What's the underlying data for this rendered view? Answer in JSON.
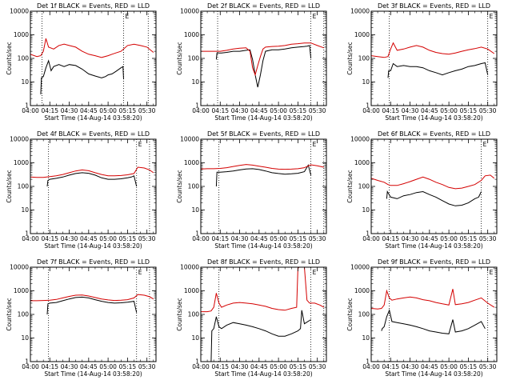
{
  "figure": {
    "x_tick_labels": [
      "04:00",
      "04:15",
      "04:30",
      "04:45",
      "05:00",
      "05:15",
      "05:30"
    ],
    "y_tick_labels": [
      "1",
      "10",
      "100",
      "1000",
      "10000"
    ],
    "y_axis_label": "Counts/sec",
    "x_axis_label": "Start Time (14-Aug-14 03:58:20)",
    "colors": {
      "events": "#000000",
      "lld": "#e00000",
      "axes": "#000000"
    },
    "marker_label": "E"
  },
  "chart_data": [
    {
      "type": "line",
      "title": "Det 1f BLACK = Events, RED = LLD",
      "xlabel": "Start Time (14-Aug-14 03:58:20)",
      "ylabel": "Counts/sec",
      "x_unit": "minutes after 04:00",
      "xlim": [
        0,
        97
      ],
      "ylim": [
        1,
        10000
      ],
      "y_scale": "log",
      "vlines": [
        9,
        72,
        91
      ],
      "series": [
        {
          "name": "BLACK = Events",
          "color": "#000000",
          "x": [
            8,
            8.5,
            10,
            12,
            14,
            16,
            18,
            22,
            26,
            30,
            35,
            40,
            45,
            50,
            55,
            58,
            60,
            63,
            66,
            70,
            71.5,
            72
          ],
          "y": [
            3,
            15,
            17,
            40,
            80,
            30,
            45,
            55,
            45,
            55,
            50,
            35,
            22,
            18,
            15,
            17,
            20,
            22,
            28,
            40,
            45,
            13
          ]
        },
        {
          "name": "RED = LLD",
          "color": "#d40000",
          "x": [
            0,
            5,
            8,
            10,
            12,
            14,
            18,
            22,
            26,
            30,
            35,
            40,
            45,
            50,
            55,
            60,
            63,
            66,
            70,
            75,
            80,
            85,
            90,
            95
          ],
          "y": [
            150,
            120,
            130,
            200,
            700,
            300,
            250,
            350,
            400,
            350,
            300,
            200,
            150,
            130,
            110,
            130,
            150,
            170,
            200,
            350,
            400,
            350,
            300,
            180
          ]
        }
      ]
    },
    {
      "type": "line",
      "title": "Det 2f BLACK = Events, RED = LLD",
      "xlabel": "Start Time (14-Aug-14 03:58:20)",
      "ylabel": "Counts/sec",
      "x_unit": "minutes after 04:00",
      "xlim": [
        0,
        97
      ],
      "ylim": [
        1,
        10000
      ],
      "y_scale": "log",
      "vlines": [
        13,
        85,
        95
      ],
      "series": [
        {
          "name": "BLACK = Events",
          "color": "#000000",
          "x": [
            12,
            12.5,
            16,
            20,
            25,
            30,
            35,
            38,
            40,
            42,
            44,
            46,
            48,
            50,
            55,
            60,
            65,
            70,
            75,
            80,
            82,
            84,
            85
          ],
          "y": [
            90,
            170,
            170,
            180,
            200,
            200,
            220,
            230,
            90,
            20,
            6,
            20,
            80,
            200,
            230,
            230,
            250,
            280,
            300,
            320,
            330,
            350,
            100
          ]
        },
        {
          "name": "RED = LLD",
          "color": "#d40000",
          "x": [
            0,
            5,
            10,
            15,
            20,
            25,
            30,
            35,
            38,
            40,
            42,
            44,
            46,
            48,
            50,
            55,
            60,
            65,
            70,
            75,
            80,
            85,
            90,
            95
          ],
          "y": [
            200,
            200,
            200,
            200,
            220,
            250,
            270,
            280,
            200,
            40,
            20,
            50,
            120,
            250,
            300,
            320,
            330,
            350,
            400,
            420,
            450,
            450,
            350,
            280
          ]
        }
      ]
    },
    {
      "type": "line",
      "title": "Det 3f BLACK = Events, RED = LLD",
      "xlabel": "Start Time (14-Aug-14 03:58:20)",
      "ylabel": "Counts/sec",
      "x_unit": "minutes after 04:00",
      "xlim": [
        0,
        97
      ],
      "ylim": [
        1,
        10000
      ],
      "y_scale": "log",
      "vlines": [
        14,
        90
      ],
      "series": [
        {
          "name": "BLACK = Events",
          "color": "#000000",
          "x": [
            13,
            13.5,
            15,
            17,
            20,
            25,
            30,
            35,
            40,
            45,
            50,
            55,
            60,
            65,
            70,
            75,
            80,
            85,
            88,
            90
          ],
          "y": [
            15,
            30,
            30,
            60,
            45,
            50,
            45,
            45,
            40,
            30,
            25,
            20,
            25,
            30,
            35,
            45,
            50,
            60,
            65,
            20
          ]
        },
        {
          "name": "RED = LLD",
          "color": "#d40000",
          "x": [
            0,
            5,
            10,
            13,
            15,
            17,
            20,
            25,
            30,
            35,
            40,
            45,
            50,
            55,
            60,
            65,
            70,
            75,
            80,
            85,
            90,
            95
          ],
          "y": [
            130,
            120,
            110,
            120,
            250,
            450,
            220,
            250,
            300,
            350,
            300,
            220,
            180,
            160,
            150,
            170,
            200,
            230,
            260,
            300,
            250,
            160
          ]
        }
      ]
    },
    {
      "type": "line",
      "title": "Det 4f BLACK = Events, RED = LLD",
      "xlabel": "Start Time (14-Aug-14 03:58:20)",
      "ylabel": "Counts/sec",
      "x_unit": "minutes after 04:00",
      "xlim": [
        0,
        97
      ],
      "ylim": [
        1,
        10000
      ],
      "y_scale": "log",
      "vlines": [
        14,
        82,
        92
      ],
      "series": [
        {
          "name": "BLACK = Events",
          "color": "#000000",
          "x": [
            13,
            13.5,
            15,
            20,
            25,
            30,
            35,
            40,
            45,
            50,
            55,
            60,
            65,
            70,
            75,
            78,
            80,
            82
          ],
          "y": [
            100,
            180,
            200,
            220,
            250,
            300,
            350,
            380,
            360,
            300,
            230,
            200,
            200,
            210,
            230,
            250,
            280,
            100
          ]
        },
        {
          "name": "RED = LLD",
          "color": "#d40000",
          "x": [
            0,
            5,
            10,
            15,
            20,
            25,
            30,
            35,
            40,
            45,
            50,
            55,
            60,
            65,
            70,
            75,
            80,
            83,
            88,
            92,
            95
          ],
          "y": [
            250,
            240,
            240,
            260,
            280,
            320,
            380,
            450,
            500,
            460,
            380,
            320,
            280,
            280,
            290,
            310,
            350,
            650,
            600,
            500,
            380
          ]
        }
      ]
    },
    {
      "type": "line",
      "title": "Det 5f BLACK = Events, RED = LLD",
      "xlabel": "Start Time (14-Aug-14 03:58:20)",
      "ylabel": "Counts/sec",
      "x_unit": "minutes after 04:00",
      "xlim": [
        0,
        97
      ],
      "ylim": [
        1,
        10000
      ],
      "y_scale": "log",
      "vlines": [
        14,
        85,
        95
      ],
      "series": [
        {
          "name": "BLACK = Events",
          "color": "#000000",
          "x": [
            12,
            12.5,
            15,
            20,
            25,
            30,
            35,
            40,
            45,
            50,
            55,
            60,
            65,
            70,
            75,
            80,
            83,
            85
          ],
          "y": [
            100,
            400,
            400,
            420,
            450,
            500,
            550,
            560,
            520,
            450,
            380,
            350,
            330,
            340,
            360,
            420,
            800,
            300
          ]
        },
        {
          "name": "RED = LLD",
          "color": "#d40000",
          "x": [
            0,
            5,
            10,
            15,
            20,
            25,
            30,
            35,
            40,
            45,
            50,
            55,
            60,
            65,
            70,
            75,
            80,
            85,
            90,
            95
          ],
          "y": [
            550,
            560,
            560,
            580,
            620,
            700,
            780,
            850,
            800,
            720,
            650,
            580,
            540,
            530,
            540,
            560,
            620,
            820,
            750,
            650
          ]
        }
      ]
    },
    {
      "type": "line",
      "title": "Det 6f BLACK = Events, RED = LLD",
      "xlabel": "Start Time (14-Aug-14 03:58:20)",
      "ylabel": "Counts/sec",
      "x_unit": "minutes after 04:00",
      "xlim": [
        0,
        97
      ],
      "ylim": [
        1,
        10000
      ],
      "y_scale": "log",
      "vlines": [
        14,
        85
      ],
      "series": [
        {
          "name": "BLACK = Events",
          "color": "#000000",
          "x": [
            12,
            12.5,
            15,
            20,
            25,
            30,
            35,
            40,
            45,
            50,
            55,
            60,
            65,
            70,
            75,
            80,
            83,
            85
          ],
          "y": [
            30,
            60,
            35,
            30,
            40,
            45,
            55,
            60,
            45,
            35,
            25,
            18,
            15,
            16,
            20,
            30,
            35,
            60
          ]
        },
        {
          "name": "RED = LLD",
          "color": "#d40000",
          "x": [
            0,
            5,
            10,
            13,
            15,
            20,
            25,
            30,
            35,
            40,
            45,
            50,
            55,
            60,
            65,
            70,
            75,
            80,
            85,
            88,
            92,
            95
          ],
          "y": [
            220,
            180,
            150,
            120,
            110,
            110,
            130,
            160,
            200,
            250,
            200,
            150,
            120,
            90,
            80,
            85,
            100,
            120,
            180,
            280,
            300,
            220
          ]
        }
      ]
    },
    {
      "type": "line",
      "title": "Det 7f BLACK = Events, RED = LLD",
      "xlabel": "Start Time (14-Aug-14 03:58:20)",
      "ylabel": "Counts/sec",
      "x_unit": "minutes after 04:00",
      "xlim": [
        0,
        97
      ],
      "ylim": [
        1,
        10000
      ],
      "y_scale": "log",
      "vlines": [
        14,
        82,
        92
      ],
      "series": [
        {
          "name": "BLACK = Events",
          "color": "#000000",
          "x": [
            13,
            13.5,
            15,
            20,
            25,
            30,
            35,
            40,
            45,
            50,
            55,
            60,
            65,
            70,
            75,
            80,
            82
          ],
          "y": [
            100,
            280,
            300,
            320,
            380,
            450,
            520,
            540,
            500,
            420,
            360,
            320,
            300,
            310,
            330,
            360,
            120
          ]
        },
        {
          "name": "RED = LLD",
          "color": "#d40000",
          "x": [
            0,
            5,
            10,
            15,
            20,
            25,
            30,
            35,
            40,
            45,
            50,
            55,
            60,
            65,
            70,
            75,
            80,
            83,
            88,
            92,
            95
          ],
          "y": [
            380,
            380,
            390,
            400,
            430,
            500,
            580,
            650,
            660,
            600,
            520,
            450,
            410,
            390,
            400,
            420,
            500,
            700,
            650,
            560,
            450
          ]
        }
      ]
    },
    {
      "type": "line",
      "title": "Det 8f BLACK = Events, RED = LLD",
      "xlabel": "Start Time (14-Aug-14 03:58:20)",
      "ylabel": "Counts/sec",
      "x_unit": "minutes after 04:00",
      "xlim": [
        0,
        97
      ],
      "ylim": [
        1,
        10000
      ],
      "y_scale": "log",
      "vlines": [
        14,
        85,
        95
      ],
      "series": [
        {
          "name": "BLACK = Events",
          "color": "#000000",
          "x": [
            8,
            8.5,
            10,
            12,
            14,
            16,
            20,
            25,
            30,
            35,
            40,
            45,
            50,
            55,
            60,
            65,
            70,
            75,
            77,
            78,
            80,
            85
          ],
          "y": [
            1,
            20,
            25,
            80,
            30,
            25,
            35,
            45,
            40,
            35,
            30,
            25,
            20,
            15,
            12,
            12,
            15,
            20,
            25,
            150,
            40,
            60
          ]
        },
        {
          "name": "RED = LLD",
          "color": "#d40000",
          "x": [
            0,
            5,
            8,
            10,
            12,
            14,
            16,
            20,
            25,
            30,
            35,
            40,
            45,
            50,
            55,
            60,
            65,
            70,
            74,
            75,
            76,
            80,
            82,
            84,
            88,
            92,
            95
          ],
          "y": [
            130,
            130,
            140,
            200,
            800,
            300,
            200,
            250,
            300,
            320,
            300,
            280,
            250,
            220,
            180,
            160,
            150,
            180,
            200,
            9000,
            10000,
            10000,
            400,
            300,
            300,
            250,
            200
          ]
        }
      ]
    },
    {
      "type": "line",
      "title": "Det 9f BLACK = Events, RED = LLD",
      "xlabel": "Start Time (14-Aug-14 03:58:20)",
      "ylabel": "Counts/sec",
      "x_unit": "minutes after 04:00",
      "xlim": [
        0,
        97
      ],
      "ylim": [
        1,
        10000
      ],
      "y_scale": "log",
      "vlines": [
        14,
        90
      ],
      "series": [
        {
          "name": "BLACK = Events",
          "color": "#000000",
          "x": [
            8,
            8.5,
            10,
            12,
            14,
            16,
            20,
            25,
            30,
            35,
            40,
            45,
            50,
            55,
            60,
            63,
            65,
            70,
            75,
            80,
            85,
            88
          ],
          "y": [
            20,
            25,
            30,
            80,
            150,
            50,
            45,
            40,
            35,
            30,
            25,
            20,
            18,
            16,
            15,
            60,
            18,
            20,
            25,
            35,
            50,
            25
          ]
        },
        {
          "name": "RED = LLD",
          "color": "#d40000",
          "x": [
            0,
            5,
            8,
            10,
            12,
            14,
            16,
            20,
            25,
            30,
            35,
            40,
            45,
            50,
            55,
            60,
            63,
            65,
            70,
            75,
            80,
            85,
            90,
            95
          ],
          "y": [
            180,
            170,
            180,
            250,
            1000,
            500,
            400,
            450,
            500,
            550,
            500,
            420,
            380,
            320,
            280,
            250,
            1200,
            260,
            280,
            320,
            400,
            500,
            300,
            200
          ]
        }
      ]
    }
  ]
}
